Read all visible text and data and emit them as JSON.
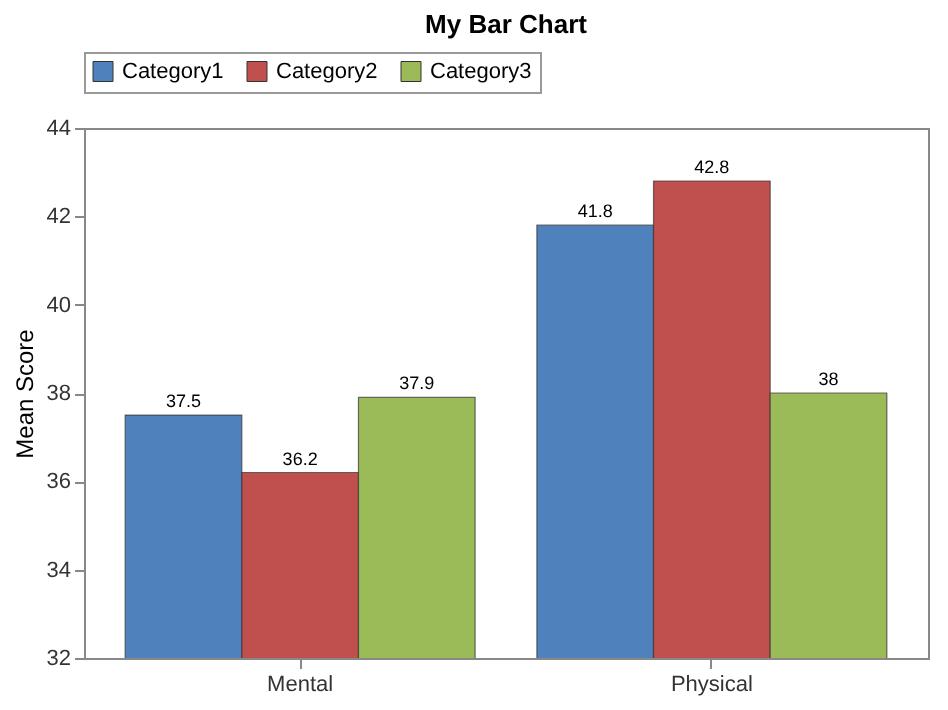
{
  "chart_data": {
    "type": "bar",
    "title": "My Bar Chart",
    "ylabel": "Mean Score",
    "categories": [
      "Mental",
      "Physical"
    ],
    "series": [
      {
        "name": "Category1",
        "color": "#4f81bd",
        "values": [
          37.5,
          41.8
        ]
      },
      {
        "name": "Category2",
        "color": "#c0504d",
        "values": [
          36.2,
          42.8
        ]
      },
      {
        "name": "Category3",
        "color": "#9bbb59",
        "values": [
          37.9,
          38
        ]
      }
    ],
    "ylim": [
      32,
      44
    ],
    "yticks": [
      32,
      34,
      36,
      38,
      40,
      42,
      44
    ],
    "grid": false,
    "legend": "top left",
    "data_labels": true
  }
}
